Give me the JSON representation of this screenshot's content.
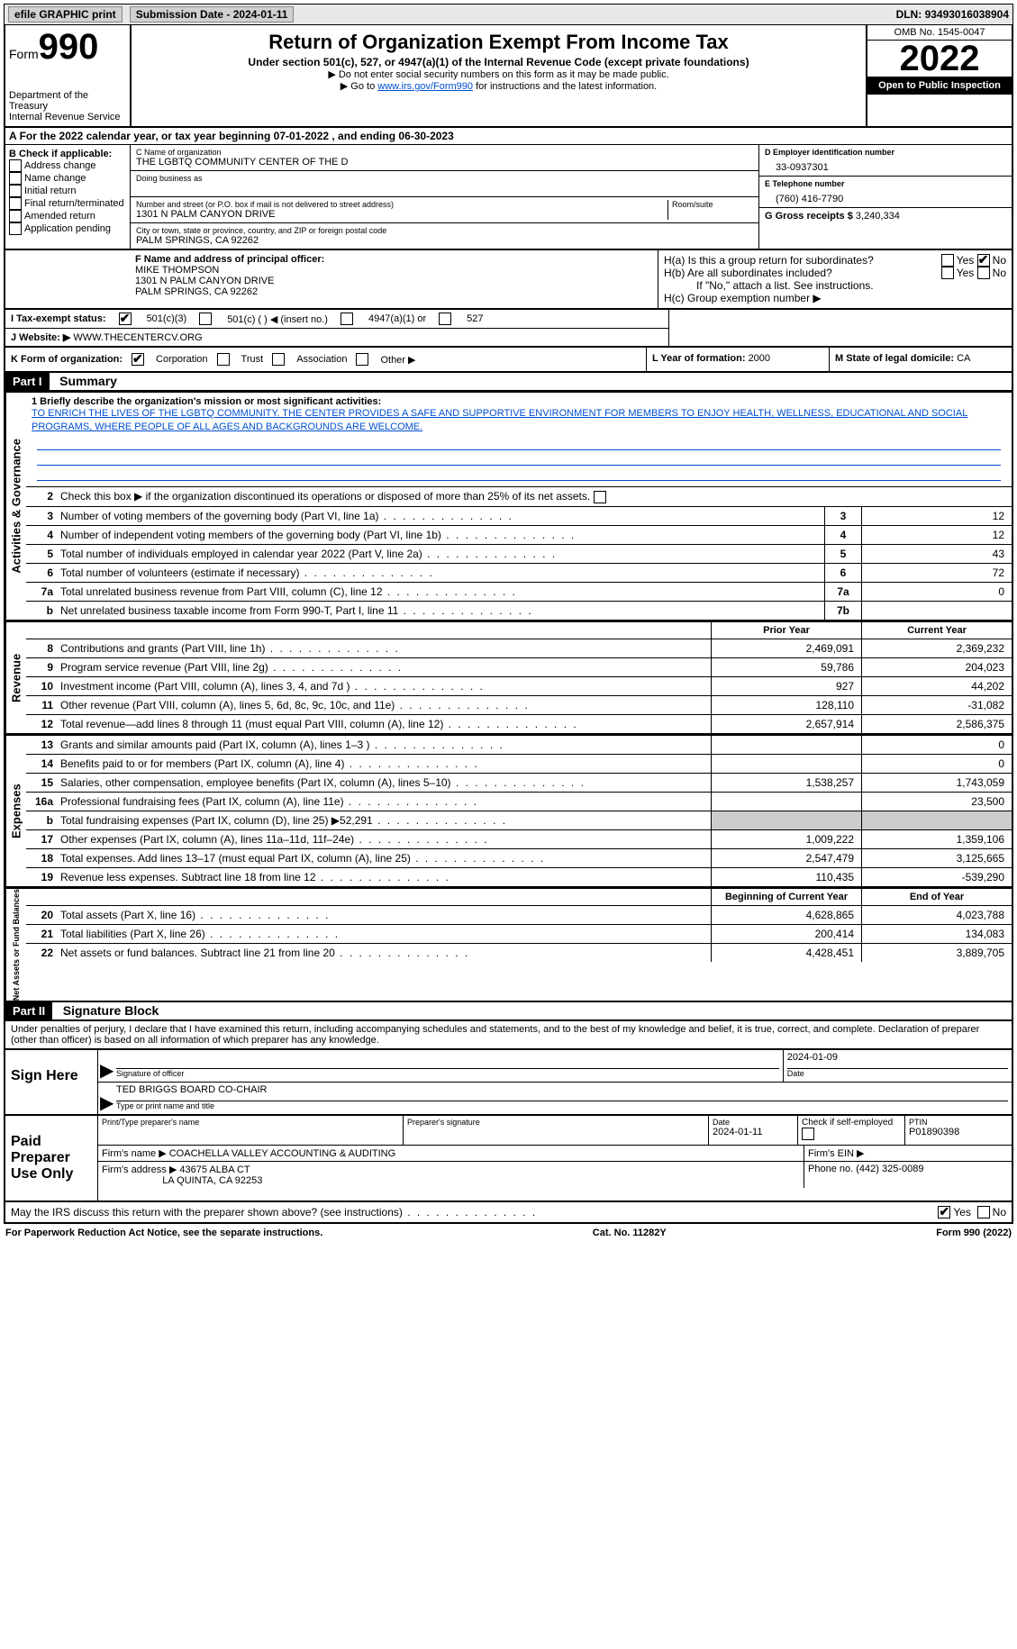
{
  "topbar": {
    "efile": "efile GRAPHIC print",
    "sub_label": "Submission Date - ",
    "sub_date": "2024-01-11",
    "dln_label": "DLN: ",
    "dln": "93493016038904"
  },
  "header": {
    "form_word": "Form",
    "form_num": "990",
    "dept": "Department of the Treasury",
    "irs": "Internal Revenue Service",
    "title": "Return of Organization Exempt From Income Tax",
    "sub": "Under section 501(c), 527, or 4947(a)(1) of the Internal Revenue Code (except private foundations)",
    "note1": "▶ Do not enter social security numbers on this form as it may be made public.",
    "note2_pre": "▶ Go to ",
    "note2_link": "www.irs.gov/Form990",
    "note2_post": " for instructions and the latest information.",
    "omb": "OMB No. 1545-0047",
    "year": "2022",
    "opi": "Open to Public Inspection"
  },
  "periodA": "For the 2022 calendar year, or tax year beginning 07-01-2022   , and ending 06-30-2023",
  "boxB": {
    "title": "B Check if applicable:",
    "opts": [
      "Address change",
      "Name change",
      "Initial return",
      "Final return/terminated",
      "Amended return",
      "Application pending"
    ]
  },
  "boxC": {
    "name_lbl": "C Name of organization",
    "name": "THE LGBTQ COMMUNITY CENTER OF THE D",
    "dba_lbl": "Doing business as",
    "addr_lbl": "Number and street (or P.O. box if mail is not delivered to street address)",
    "room_lbl": "Room/suite",
    "addr": "1301 N PALM CANYON DRIVE",
    "city_lbl": "City or town, state or province, country, and ZIP or foreign postal code",
    "city": "PALM SPRINGS, CA  92262"
  },
  "boxD": {
    "lbl": "D Employer identification number",
    "val": "33-0937301"
  },
  "boxE": {
    "lbl": "E Telephone number",
    "val": "(760) 416-7790"
  },
  "boxG": {
    "lbl": "G Gross receipts $ ",
    "val": "3,240,334"
  },
  "boxF": {
    "lbl": "F  Name and address of principal officer:",
    "name": "MIKE THOMPSON",
    "addr1": "1301 N PALM CANYON DRIVE",
    "addr2": "PALM SPRINGS, CA  92262"
  },
  "boxH": {
    "a": "H(a)  Is this a group return for subordinates?",
    "b": "H(b)  Are all subordinates included?",
    "bnote": "If \"No,\" attach a list. See instructions.",
    "c": "H(c)  Group exemption number ▶"
  },
  "rowI": {
    "lbl": "I    Tax-exempt status:",
    "o1": "501(c)(3)",
    "o2": "501(c) (  ) ◀ (insert no.)",
    "o3": "4947(a)(1) or",
    "o4": "527"
  },
  "rowJ": {
    "lbl": "J    Website: ▶ ",
    "val": "WWW.THECENTERCV.ORG"
  },
  "rowK": {
    "lbl": "K Form of organization:",
    "corp": "Corporation",
    "trust": "Trust",
    "assoc": "Association",
    "other": "Other ▶"
  },
  "rowL": {
    "lbl": "L Year of formation: ",
    "val": "2000"
  },
  "rowM": {
    "lbl": "M State of legal domicile: ",
    "val": "CA"
  },
  "part1": {
    "hdr": "Part I",
    "title": "Summary"
  },
  "mission_lbl": "1  Briefly describe the organization's mission or most significant activities:",
  "mission": "TO ENRICH THE LIVES OF THE LGBTQ COMMUNITY. THE CENTER PROVIDES A SAFE AND SUPPORTIVE ENVIRONMENT FOR MEMBERS TO ENJOY HEALTH, WELLNESS, EDUCATIONAL AND SOCIAL PROGRAMS, WHERE PEOPLE OF ALL AGES AND BACKGROUNDS ARE WELCOME.",
  "line2": "Check this box ▶        if the organization discontinued its operations or disposed of more than 25% of its net assets.",
  "gov_lines": [
    {
      "n": "3",
      "d": "Number of voting members of the governing body (Part VI, line 1a)",
      "k": "3",
      "v": "12"
    },
    {
      "n": "4",
      "d": "Number of independent voting members of the governing body (Part VI, line 1b)",
      "k": "4",
      "v": "12"
    },
    {
      "n": "5",
      "d": "Total number of individuals employed in calendar year 2022 (Part V, line 2a)",
      "k": "5",
      "v": "43"
    },
    {
      "n": "6",
      "d": "Total number of volunteers (estimate if necessary)",
      "k": "6",
      "v": "72"
    },
    {
      "n": "7a",
      "d": "Total unrelated business revenue from Part VIII, column (C), line 12",
      "k": "7a",
      "v": "0"
    },
    {
      "n": "b",
      "d": "Net unrelated business taxable income from Form 990-T, Part I, line 11",
      "k": "7b",
      "v": ""
    }
  ],
  "pyhdr": "Prior Year",
  "cyhdr": "Current Year",
  "rev_lines": [
    {
      "n": "8",
      "d": "Contributions and grants (Part VIII, line 1h)",
      "py": "2,469,091",
      "cy": "2,369,232"
    },
    {
      "n": "9",
      "d": "Program service revenue (Part VIII, line 2g)",
      "py": "59,786",
      "cy": "204,023"
    },
    {
      "n": "10",
      "d": "Investment income (Part VIII, column (A), lines 3, 4, and 7d )",
      "py": "927",
      "cy": "44,202"
    },
    {
      "n": "11",
      "d": "Other revenue (Part VIII, column (A), lines 5, 6d, 8c, 9c, 10c, and 11e)",
      "py": "128,110",
      "cy": "-31,082"
    },
    {
      "n": "12",
      "d": "Total revenue—add lines 8 through 11 (must equal Part VIII, column (A), line 12)",
      "py": "2,657,914",
      "cy": "2,586,375"
    }
  ],
  "exp_lines": [
    {
      "n": "13",
      "d": "Grants and similar amounts paid (Part IX, column (A), lines 1–3 )",
      "py": "",
      "cy": "0"
    },
    {
      "n": "14",
      "d": "Benefits paid to or for members (Part IX, column (A), line 4)",
      "py": "",
      "cy": "0"
    },
    {
      "n": "15",
      "d": "Salaries, other compensation, employee benefits (Part IX, column (A), lines 5–10)",
      "py": "1,538,257",
      "cy": "1,743,059"
    },
    {
      "n": "16a",
      "d": "Professional fundraising fees (Part IX, column (A), line 11e)",
      "py": "",
      "cy": "23,500"
    },
    {
      "n": "b",
      "d": "Total fundraising expenses (Part IX, column (D), line 25) ▶52,291",
      "py": "GRAY",
      "cy": "GRAY"
    },
    {
      "n": "17",
      "d": "Other expenses (Part IX, column (A), lines 11a–11d, 11f–24e)",
      "py": "1,009,222",
      "cy": "1,359,106"
    },
    {
      "n": "18",
      "d": "Total expenses. Add lines 13–17 (must equal Part IX, column (A), line 25)",
      "py": "2,547,479",
      "cy": "3,125,665"
    },
    {
      "n": "19",
      "d": "Revenue less expenses. Subtract line 18 from line 12",
      "py": "110,435",
      "cy": "-539,290"
    }
  ],
  "bochdr": "Beginning of Current Year",
  "eoyhdr": "End of Year",
  "net_lines": [
    {
      "n": "20",
      "d": "Total assets (Part X, line 16)",
      "py": "4,628,865",
      "cy": "4,023,788"
    },
    {
      "n": "21",
      "d": "Total liabilities (Part X, line 26)",
      "py": "200,414",
      "cy": "134,083"
    },
    {
      "n": "22",
      "d": "Net assets or fund balances. Subtract line 21 from line 20",
      "py": "4,428,451",
      "cy": "3,889,705"
    }
  ],
  "part2": {
    "hdr": "Part II",
    "title": "Signature Block"
  },
  "perjury": "Under penalties of perjury, I declare that I have examined this return, including accompanying schedules and statements, and to the best of my knowledge and belief, it is true, correct, and complete. Declaration of preparer (other than officer) is based on all information of which preparer has any knowledge.",
  "sign_here": "Sign Here",
  "sig_officer": "Signature of officer",
  "sig_date_v": "2024-01-09",
  "sig_date": "Date",
  "sig_name": "TED BRIGGS  BOARD CO-CHAIR",
  "sig_type": "Type or print name and title",
  "paid": "Paid Preparer Use Only",
  "prep_name_lbl": "Print/Type preparer's name",
  "prep_sig_lbl": "Preparer's signature",
  "prep_date_lbl": "Date",
  "prep_date": "2024-01-11",
  "prep_check": "Check         if self-employed",
  "ptin_lbl": "PTIN",
  "ptin": "P01890398",
  "firm_name_lbl": "Firm's name    ▶ ",
  "firm_name": "COACHELLA VALLEY ACCOUNTING & AUDITING",
  "firm_ein": "Firm's EIN ▶",
  "firm_addr_lbl": "Firm's address ▶ ",
  "firm_addr": "43675 ALBA CT",
  "firm_city": "LA QUINTA, CA  92253",
  "firm_phone_lbl": "Phone no. ",
  "firm_phone": "(442) 325-0089",
  "discuss": "May the IRS discuss this return with the preparer shown above? (see instructions)",
  "yes": "Yes",
  "no": "No",
  "footer": {
    "l": "For Paperwork Reduction Act Notice, see the separate instructions.",
    "m": "Cat. No. 11282Y",
    "r": "Form 990 (2022)"
  },
  "side": {
    "gov": "Activities & Governance",
    "rev": "Revenue",
    "exp": "Expenses",
    "net": "Net Assets or Fund Balances"
  }
}
